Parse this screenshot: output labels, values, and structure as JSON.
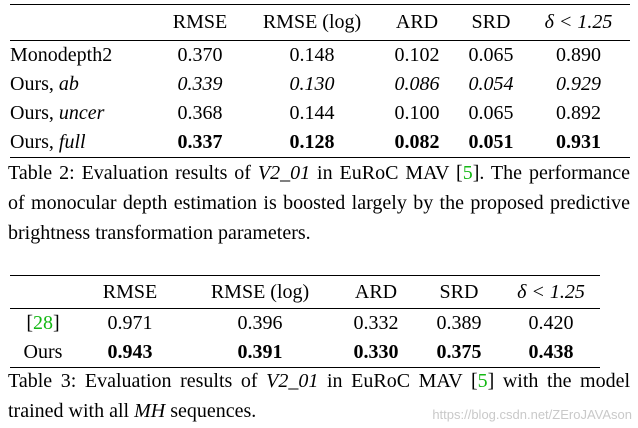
{
  "table2": {
    "headers": [
      "",
      "RMSE",
      "RMSE (log)",
      "ARD",
      "SRD",
      "δ < 1.25"
    ],
    "rows": [
      {
        "method": "Monodepth2",
        "method_suffix": "",
        "values": [
          "0.370",
          "0.148",
          "0.102",
          "0.065",
          "0.890"
        ]
      },
      {
        "method": "Ours, ",
        "method_suffix": "ab",
        "values": [
          "0.339",
          "0.130",
          "0.086",
          "0.054",
          "0.929"
        ]
      },
      {
        "method": "Ours, ",
        "method_suffix": "uncer",
        "values": [
          "0.368",
          "0.144",
          "0.100",
          "0.065",
          "0.892"
        ]
      },
      {
        "method": "Ours, ",
        "method_suffix": "full",
        "values": [
          "0.337",
          "0.128",
          "0.082",
          "0.051",
          "0.931"
        ]
      }
    ],
    "caption": {
      "label": "Table 2:",
      "text_1": "Evaluation results of",
      "sequence": "V2_01",
      "text_2": "in EuRoC MAV [",
      "ref": "5",
      "text_3": "]. The performance of monocular depth estimation is boosted largely by the proposed predictive brightness transformation parameters."
    }
  },
  "table3": {
    "headers": [
      "",
      "RMSE",
      "RMSE (log)",
      "ARD",
      "SRD",
      "δ < 1.25"
    ],
    "rows": [
      {
        "method_ref": "28",
        "values": [
          "0.971",
          "0.396",
          "0.332",
          "0.389",
          "0.420"
        ]
      },
      {
        "method": "Ours",
        "values": [
          "0.943",
          "0.391",
          "0.330",
          "0.375",
          "0.438"
        ]
      }
    ],
    "caption": {
      "label": "Table 3:",
      "text_1": "Evaluation results of",
      "sequence": "V2_01",
      "text_2": "in EuRoC MAV [",
      "ref": "5",
      "text_3": "] with the model trained with all",
      "sequence_2": "MH",
      "text_4": "sequences."
    }
  },
  "watermark": "https://blog.csdn.net/ZEroJAVAson"
}
